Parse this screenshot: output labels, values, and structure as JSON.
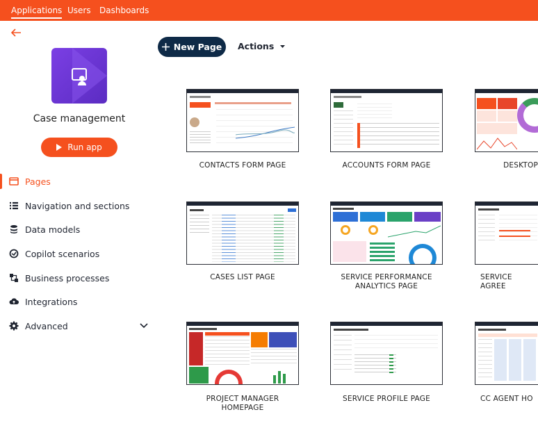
{
  "topbar": {
    "tabs": [
      "Applications",
      "Users",
      "Dashboards"
    ]
  },
  "sidebar": {
    "app_name": "Case management",
    "run_button": "Run app",
    "nav": [
      "Pages",
      "Navigation and sections",
      "Data models",
      "Copilot scenarios",
      "Business processes",
      "Integrations",
      "Advanced"
    ]
  },
  "toolbar": {
    "new_page": "New Page",
    "actions": "Actions"
  },
  "pages": [
    {
      "label": "CONTACTS FORM PAGE"
    },
    {
      "label": "ACCOUNTS FORM PAGE"
    },
    {
      "label": "DESKTOP"
    },
    {
      "label": "CASES LIST PAGE"
    },
    {
      "label": "SERVICE PERFORMANCE ANALYTICS PAGE"
    },
    {
      "label": "SERVICE AGREE"
    },
    {
      "label": "PROJECT MANAGER HOMEPAGE"
    },
    {
      "label": "SERVICE PROFILE PAGE"
    },
    {
      "label": "CC AGENT HO"
    }
  ]
}
